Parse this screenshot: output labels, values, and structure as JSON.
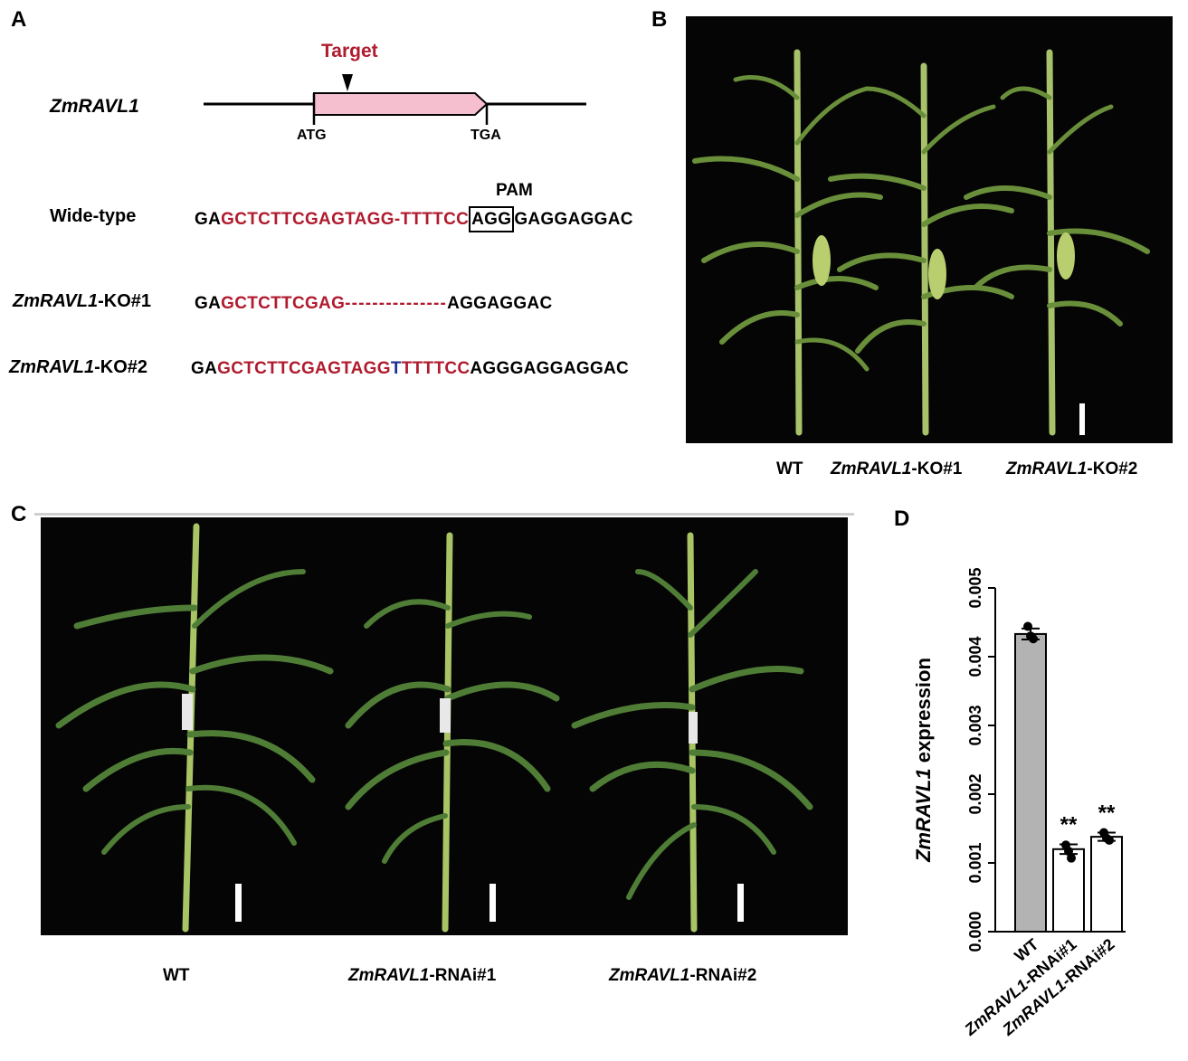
{
  "panels": {
    "a": "A",
    "b": "B",
    "c": "C",
    "d": "D"
  },
  "panel_a": {
    "gene_label": "ZmRAVL1",
    "target_label": "Target",
    "start_codon": "ATG",
    "stop_codon": "TGA",
    "pam_label": "PAM",
    "wildtype": {
      "label": "Wide-type",
      "seq_black1": "GA",
      "seq_red": "GCTCTTCGAGTAGG",
      "seq_gap": "-",
      "seq_red2": "TTTTCC",
      "seq_pam": "AGG",
      "seq_black2": "GAGGAGGAC"
    },
    "ko1": {
      "label_italic": "ZmRAVL1",
      "label_suffix": "-KO#1",
      "seq_black1": "GA",
      "seq_red": "GCTCTTCGAG",
      "seq_dashes": "---------------",
      "seq_black2": "AGGAGGAC"
    },
    "ko2": {
      "label_italic": "ZmRAVL1",
      "label_suffix": "-KO#2",
      "seq_black1": "GA",
      "seq_red": "GCTCTTCGAGTAGG",
      "seq_insert": "T",
      "seq_red2": "TTTTCC",
      "seq_black2": "AGGGAGGAGGAC"
    }
  },
  "panel_b": {
    "captions": [
      {
        "italic": "",
        "suffix": "WT"
      },
      {
        "italic": "ZmRAVL1",
        "suffix": "-KO#1"
      },
      {
        "italic": "ZmRAVL1",
        "suffix": "-KO#2"
      }
    ]
  },
  "panel_c": {
    "captions": [
      {
        "italic": "",
        "suffix": "WT"
      },
      {
        "italic": "ZmRAVL1",
        "suffix": "-RNAi#1"
      },
      {
        "italic": "ZmRAVL1",
        "suffix": "-RNAi#2"
      }
    ]
  },
  "chart_data": {
    "type": "bar",
    "categories": [
      "WT",
      "ZmRAVL1-RNAi#1",
      "ZmRAVL1-RNAi#2"
    ],
    "category_parts": [
      {
        "italic": "",
        "suffix": "WT"
      },
      {
        "italic": "ZmRAVL1",
        "suffix": "-RNAi#1"
      },
      {
        "italic": "ZmRAVL1",
        "suffix": "-RNAi#2"
      }
    ],
    "values": [
      0.00433,
      0.0012,
      0.00138
    ],
    "errors": [
      8e-05,
      7e-05,
      6e-05
    ],
    "points": [
      [
        0.00444,
        0.0043,
        0.00426
      ],
      [
        0.00126,
        0.00117,
        0.00107
      ],
      [
        0.00144,
        0.00136,
        0.00133
      ]
    ],
    "significance": [
      "",
      "**",
      "**"
    ],
    "bar_colors": [
      "#b3b3b3",
      "#ffffff",
      "#ffffff"
    ],
    "ylabel_italic": "ZmRAVL1",
    "ylabel_suffix": " expression",
    "yticks": [
      "0.000",
      "0.001",
      "0.002",
      "0.003",
      "0.004",
      "0.005"
    ],
    "ylim": [
      0,
      0.005
    ]
  }
}
